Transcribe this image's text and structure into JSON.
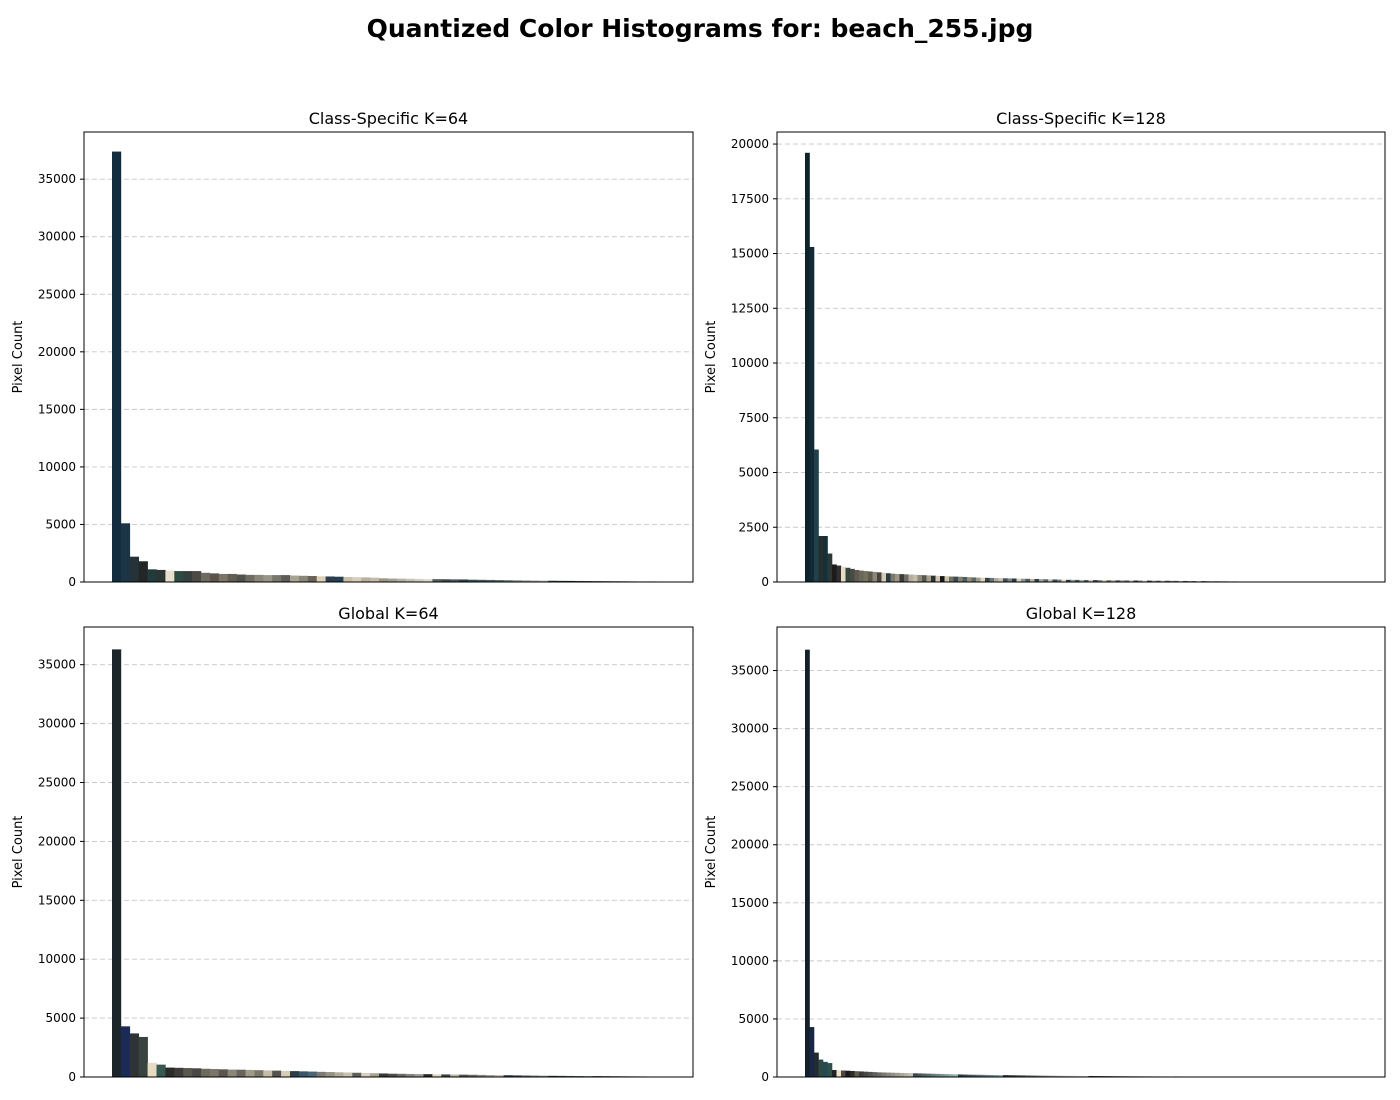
{
  "figure": {
    "title": "Quantized Color Histograms for: beach_255.jpg"
  },
  "chart_data": [
    {
      "type": "bar",
      "title": "Class-Specific K=64",
      "xlabel": "",
      "ylabel": "Pixel Count",
      "grid": "y-dashed",
      "ylim": [
        0,
        39100
      ],
      "yticks": [
        0,
        5000,
        10000,
        15000,
        20000,
        25000,
        30000,
        35000
      ],
      "num_bins": 64,
      "values": [
        37400,
        5100,
        2200,
        1800,
        1100,
        1050,
        1000,
        950,
        950,
        950,
        800,
        750,
        700,
        700,
        650,
        620,
        620,
        600,
        600,
        600,
        560,
        540,
        520,
        500,
        480,
        460,
        440,
        420,
        400,
        380,
        320,
        300,
        290,
        280,
        270,
        260,
        250,
        240,
        230,
        220,
        200,
        190,
        180,
        170,
        160,
        150,
        140,
        130,
        120,
        110,
        100,
        95,
        90,
        85,
        80,
        75,
        70,
        65,
        60,
        55,
        50,
        45,
        40,
        30
      ],
      "colors": [
        "#132c3e",
        "#1b3547",
        "#263238",
        "#222626",
        "#213a3a",
        "#2a3434",
        "#e8e0cc",
        "#2e4a44",
        "#34403c",
        "#4c4a44",
        "#6e6a5e",
        "#5a544a",
        "#7c7466",
        "#625e52",
        "#52524c",
        "#6e6c64",
        "#8a8678",
        "#9a9484",
        "#7a766c",
        "#5e5c56",
        "#a8a290",
        "#8c8676",
        "#6a6458",
        "#dcd2b8",
        "#2a3e4e",
        "#244050",
        "#c8c0a8",
        "#d6ceb8",
        "#b8b09c",
        "#c2bca8",
        "#9c9886",
        "#a4a092",
        "#b6b2a2",
        "#c6c2b2",
        "#d4d0c0",
        "#e0dccc",
        "#56605e",
        "#3e4c52",
        "#48585e",
        "#2c3c44",
        "#385058",
        "#40585e",
        "#4a6066",
        "#5a6a6c",
        "#6a7878",
        "#7e8a88",
        "#8e9898",
        "#a0a8a4",
        "#b0b4ae",
        "#2e3a3e",
        "#243438",
        "#1e2e34",
        "#3a4448",
        "#444c4e",
        "#4e5456",
        "#585e5e",
        "#626868",
        "#6c7070",
        "#a89c7c",
        "#d8c090",
        "#7c7050",
        "#5c5040",
        "#3c3830",
        "#2c2a26"
      ]
    },
    {
      "type": "bar",
      "title": "Class-Specific K=128",
      "xlabel": "",
      "ylabel": "Pixel Count",
      "grid": "y-dashed",
      "ylim": [
        0,
        20550
      ],
      "yticks": [
        0,
        2500,
        5000,
        7500,
        10000,
        12500,
        15000,
        17500,
        20000
      ],
      "num_bins": 128,
      "values": [
        19600,
        15300,
        6050,
        2100,
        2100,
        1300,
        800,
        750,
        700,
        650,
        600,
        550,
        520,
        500,
        480,
        460,
        440,
        420,
        400,
        380,
        370,
        360,
        350,
        340,
        330,
        320,
        310,
        300,
        290,
        280,
        270,
        260,
        250,
        245,
        240,
        230,
        220,
        210,
        200,
        195,
        190,
        185,
        180,
        175,
        170,
        165,
        160,
        155,
        150,
        145,
        140,
        135,
        130,
        125,
        120,
        115,
        110,
        105,
        100,
        98,
        96,
        94,
        92,
        90,
        88,
        86,
        84,
        82,
        80,
        78,
        76,
        74,
        72,
        70,
        68,
        66,
        64,
        62,
        60,
        58,
        56,
        54,
        52,
        50,
        48,
        46,
        44,
        42,
        40,
        38,
        36,
        34,
        32,
        30,
        28,
        26,
        24,
        22,
        20,
        18,
        16,
        14,
        12,
        10,
        9,
        8,
        7,
        6,
        5,
        4,
        4,
        3,
        3,
        2,
        2,
        2,
        1,
        1,
        1,
        1,
        1,
        1,
        1,
        1,
        1,
        1,
        1,
        1
      ],
      "colors": [
        "#0e222c",
        "#132a36",
        "#1e4248",
        "#262e2e",
        "#163038",
        "#2c3838",
        "#1c1c1c",
        "#302e2c",
        "#e6dcc6",
        "#34463e",
        "#4a4a42",
        "#5e5a50",
        "#6a665a",
        "#76705e",
        "#5a5a52",
        "#8a8676",
        "#46443e",
        "#d4ccb6",
        "#2a3c46",
        "#7c786c",
        "#9c9686",
        "#3e3c36",
        "#6e6e66",
        "#b4ae9c",
        "#c2bca8",
        "#8e8a7c",
        "#56564e",
        "#a6a090",
        "#2e3230",
        "#d0c8b0",
        "#181818",
        "#ccc4ac",
        "#747064",
        "#3a4a50",
        "#848072",
        "#4e5e60",
        "#94907e",
        "#5e6866",
        "#a09c8c",
        "#ded6c0",
        "#364448",
        "#6a7472",
        "#b0aa98",
        "#c8c2ae",
        "#405056",
        "#7a8482",
        "#283a42",
        "#d8d0ba",
        "#8a9490",
        "#4a5a5e",
        "#bab4a2",
        "#2c3e46",
        "#9aa29e",
        "#5a6a6c",
        "#c0bca8",
        "#384a52",
        "#6c7a7a",
        "#e2dac4",
        "#2e3e44",
        "#8c9896",
        "#465658",
        "#a8aea8",
        "#566466",
        "#ccc8b6",
        "#3a484c",
        "#7a8684",
        "#d2ccb8",
        "#6a7676",
        "#b6b4a4",
        "#4c5a5c",
        "#949e9a",
        "#5e6c6c",
        "#c6c2b0",
        "#344246",
        "#7e8a88",
        "#dcd6c2",
        "#2a3a40",
        "#a0a6a2",
        "#50605e",
        "#bcb8a8",
        "#3e4e52",
        "#86908e",
        "#626e6e",
        "#cac6b4",
        "#42525a",
        "#989e9a",
        "#586866",
        "#e0dac6",
        "#30404a",
        "#74807e",
        "#b2b0a0",
        "#485a5c",
        "#8c9492",
        "#606e70",
        "#c4c0ae",
        "#384a4e",
        "#7c8886",
        "#d6d0bc",
        "#546462",
        "#a2a8a4",
        "#3c4c50",
        "#888e8c",
        "#646e6c",
        "#ccc8b8",
        "#44545a",
        "#9aa09c",
        "#5a6a6a",
        "#dad4c0",
        "#34464c",
        "#788482",
        "#b8b4a4",
        "#4e5e60",
        "#909896",
        "#667272",
        "#c8c4b2",
        "#3a4a4e",
        "#808a88",
        "#d0cab8",
        "#526260",
        "#a4aaa6",
        "#404e54",
        "#8a9290",
        "#5e6c6e",
        "#e4dcc8",
        "#2e3e42",
        "#76827e",
        "#b4b2a2",
        "#4a5a5a"
      ]
    },
    {
      "type": "bar",
      "title": "Global K=64",
      "xlabel": "",
      "ylabel": "Pixel Count",
      "grid": "y-dashed",
      "ylim": [
        0,
        38200
      ],
      "yticks": [
        0,
        5000,
        10000,
        15000,
        20000,
        25000,
        30000,
        35000
      ],
      "num_bins": 64,
      "values": [
        36300,
        4300,
        3700,
        3400,
        1200,
        1050,
        800,
        780,
        760,
        740,
        700,
        680,
        650,
        630,
        620,
        600,
        580,
        560,
        540,
        520,
        500,
        480,
        460,
        440,
        420,
        400,
        380,
        360,
        340,
        320,
        300,
        280,
        270,
        260,
        250,
        240,
        230,
        220,
        210,
        200,
        190,
        180,
        170,
        160,
        150,
        140,
        130,
        120,
        110,
        100,
        95,
        90,
        85,
        80,
        75,
        70,
        65,
        60,
        55,
        50,
        45,
        40,
        30,
        20
      ],
      "colors": [
        "#1c262a",
        "#1c2a56",
        "#2e3436",
        "#38423e",
        "#e6dcc4",
        "#365a52",
        "#2c2c2a",
        "#3e3c38",
        "#5a584e",
        "#4a4844",
        "#6e6a5e",
        "#7c766a",
        "#58564e",
        "#8a8678",
        "#66645c",
        "#a09a88",
        "#7a7868",
        "#c4bca6",
        "#565450",
        "#d6cdb4",
        "#2e3e48",
        "#3a5468",
        "#4a6478",
        "#7c7a72",
        "#969282",
        "#b0aa98",
        "#c6c0ac",
        "#5e605a",
        "#d8d0ba",
        "#a6a290",
        "#383a38",
        "#4c4e4a",
        "#686a64",
        "#848680",
        "#9e9e96",
        "#2a2a28",
        "#e0d8c2",
        "#3c4440",
        "#b8b4a2",
        "#52524e",
        "#6c6c66",
        "#888880",
        "#a2a29a",
        "#c0bcaa",
        "#2c3438",
        "#3e4a4e",
        "#526064",
        "#68767a",
        "#7e8c8e",
        "#263034",
        "#34484e",
        "#466066",
        "#5a767c",
        "#708c90",
        "#1e2628",
        "#2a3438",
        "#384448",
        "#465458",
        "#546266",
        "#627074",
        "#707e80",
        "#7e8c8e",
        "#8c9a9c",
        "#9aa8a8"
      ]
    },
    {
      "type": "bar",
      "title": "Global K=128",
      "xlabel": "",
      "ylabel": "Pixel Count",
      "grid": "y-dashed",
      "ylim": [
        0,
        38750
      ],
      "yticks": [
        0,
        5000,
        10000,
        15000,
        20000,
        25000,
        30000,
        35000
      ],
      "num_bins": 128,
      "values": [
        36800,
        4300,
        2100,
        1500,
        1300,
        1200,
        600,
        580,
        560,
        540,
        520,
        500,
        480,
        460,
        440,
        420,
        400,
        390,
        380,
        370,
        360,
        350,
        340,
        330,
        320,
        310,
        300,
        290,
        280,
        270,
        260,
        250,
        240,
        230,
        220,
        210,
        200,
        195,
        190,
        185,
        180,
        175,
        170,
        165,
        160,
        155,
        150,
        145,
        140,
        135,
        130,
        125,
        120,
        115,
        110,
        105,
        100,
        98,
        96,
        94,
        92,
        90,
        88,
        86,
        84,
        82,
        80,
        78,
        76,
        74,
        72,
        70,
        68,
        66,
        64,
        62,
        60,
        58,
        56,
        54,
        52,
        50,
        48,
        46,
        44,
        42,
        40,
        38,
        36,
        34,
        32,
        30,
        28,
        26,
        24,
        22,
        20,
        18,
        16,
        14,
        12,
        10,
        9,
        8,
        7,
        6,
        5,
        4,
        4,
        3,
        3,
        2,
        2,
        2,
        1,
        1,
        1,
        1,
        1,
        1,
        1,
        1,
        1,
        1,
        1,
        1,
        1,
        1
      ],
      "colors": [
        "#12202c",
        "#1a2646",
        "#222c30",
        "#2e4a44",
        "#264a52",
        "#30504c",
        "#1e2224",
        "#efe0c4",
        "#4a4640",
        "#1a1a18",
        "#2e2c28",
        "#5e5a50",
        "#3a3a36",
        "#484844",
        "#54524e",
        "#60605a",
        "#6c6a64",
        "#7a7870",
        "#86847c",
        "#928e84",
        "#a09a8c",
        "#aca696",
        "#b8b2a2",
        "#c4beac",
        "#3c4a4e",
        "#46565a",
        "#506266",
        "#5a6e72",
        "#647a7e",
        "#6e868a",
        "#789294",
        "#829e9e",
        "#8caaa8",
        "#96b4b2",
        "#2c3a40",
        "#36464c",
        "#405258",
        "#4a5e64",
        "#546a70",
        "#5e767c",
        "#688288",
        "#728e94",
        "#7c9aa0",
        "#86a6ac",
        "#222a2c",
        "#2c3436",
        "#363e40",
        "#40484a",
        "#4a5254",
        "#545c5e",
        "#5e6668",
        "#687072",
        "#727a7c",
        "#7c8486",
        "#868e90",
        "#90989a",
        "#9aa2a4",
        "#a4acae",
        "#aeb6b8",
        "#b8c0c2",
        "#c2cacc",
        "#ccd4d6",
        "#d6dee0",
        "#2a2824",
        "#34322e",
        "#3e3c38",
        "#484642",
        "#52504c",
        "#5c5a56",
        "#666460",
        "#706e6a",
        "#7a7874",
        "#84827e",
        "#8e8c88",
        "#989692",
        "#a2a09c",
        "#acaaa6",
        "#b6b4b0",
        "#c0beba",
        "#cac8c4",
        "#d4d2ce",
        "#dedcd8",
        "#2e3a3e",
        "#384448",
        "#424e52",
        "#4c585c",
        "#566266",
        "#606c70",
        "#6a767a",
        "#748084",
        "#7e8a8e",
        "#889498",
        "#929ea2",
        "#9ca8ac",
        "#a6b2b6",
        "#b0bcc0",
        "#bac6ca",
        "#c4d0d4",
        "#ced8dc",
        "#24303a",
        "#2e3a44",
        "#38444e",
        "#424e58",
        "#4c5862",
        "#56626c",
        "#606c76",
        "#6a7680",
        "#74808a",
        "#7e8a94",
        "#88949e",
        "#929ea8",
        "#9ca8b2",
        "#a6b2bc",
        "#b0bcc6",
        "#bac6d0",
        "#c4d0da",
        "#ced8e2",
        "#d8e2ec",
        "#2c2e30",
        "#36383a",
        "#404244",
        "#4a4c4e",
        "#545658",
        "#5e6062",
        "#686a6c",
        "#727476",
        "#7c7e80",
        "#86888a"
      ]
    }
  ]
}
